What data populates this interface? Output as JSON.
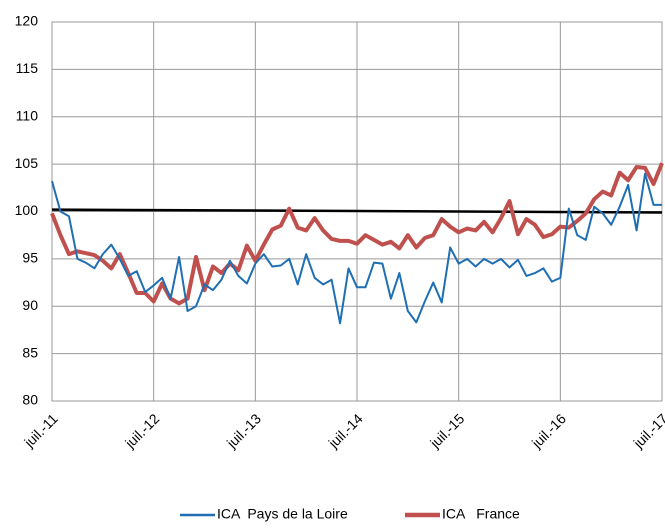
{
  "chart_data": {
    "type": "line",
    "categories": [
      "juil.-11",
      null,
      null,
      null,
      null,
      null,
      null,
      null,
      null,
      null,
      null,
      null,
      "juil.-12",
      null,
      null,
      null,
      null,
      null,
      null,
      null,
      null,
      null,
      null,
      null,
      "juil.-13",
      null,
      null,
      null,
      null,
      null,
      null,
      null,
      null,
      null,
      null,
      null,
      "juil.-14",
      null,
      null,
      null,
      null,
      null,
      null,
      null,
      null,
      null,
      null,
      null,
      "juil.-15",
      null,
      null,
      null,
      null,
      null,
      null,
      null,
      null,
      null,
      null,
      null,
      "juil.-16",
      null,
      null,
      null,
      null,
      null,
      null,
      null,
      null,
      null,
      null,
      null,
      "juil.-17"
    ],
    "series": [
      {
        "name": "ICA  Pays de la Loire",
        "color": "#1f6fb4",
        "values": [
          103.2,
          100,
          99.5,
          95,
          94.6,
          94,
          95.5,
          96.5,
          95,
          93.2,
          93.7,
          91.5,
          92.2,
          93,
          90.8,
          95.2,
          89.5,
          90,
          92.3,
          91.7,
          92.8,
          94.8,
          93.2,
          92.4,
          94.5,
          95.5,
          94.2,
          94.3,
          95,
          92.3,
          95.5,
          93,
          92.3,
          92.8,
          88.2,
          94,
          92,
          92,
          94.6,
          94.5,
          90.8,
          93.5,
          89.5,
          88.3,
          90.5,
          92.5,
          90.4,
          96.2,
          94.5,
          95,
          94.2,
          95,
          94.5,
          95,
          94.1,
          94.9,
          93.2,
          93.5,
          94,
          92.6,
          93,
          100.3,
          97.5,
          97,
          100.5,
          99.8,
          98.6,
          100.5,
          102.8,
          98,
          104,
          100.7,
          100.7
        ]
      },
      {
        "name": "ICA   France",
        "color": "#c0504d",
        "values": [
          99.8,
          97.5,
          95.5,
          95.8,
          95.6,
          95.4,
          94.8,
          94,
          95.5,
          93.5,
          91.4,
          91.4,
          90.5,
          92.4,
          90.8,
          90.3,
          90.8,
          95.2,
          91.7,
          94.2,
          93.5,
          94.5,
          93.8,
          96.4,
          94.8,
          96.5,
          98.1,
          98.5,
          100.3,
          98.3,
          98,
          99.3,
          98,
          97.1,
          96.9,
          96.9,
          96.6,
          97.5,
          97,
          96.5,
          96.8,
          96.1,
          97.5,
          96.2,
          97.2,
          97.5,
          99.2,
          98.4,
          97.8,
          98.2,
          98,
          98.9,
          97.8,
          99.3,
          101.1,
          97.6,
          99.2,
          98.6,
          97.3,
          97.6,
          98.4,
          98.3,
          99,
          99.8,
          101.3,
          102.1,
          101.7,
          104.1,
          103.3,
          104.7,
          104.6,
          102.9,
          105.1
        ]
      }
    ],
    "reference_line": {
      "values": [
        100.2,
        99.9
      ],
      "color": "#000000"
    },
    "ylim": [
      80,
      120
    ],
    "yticks": [
      80,
      85,
      90,
      95,
      100,
      105,
      110,
      115,
      120
    ],
    "grid": true
  }
}
